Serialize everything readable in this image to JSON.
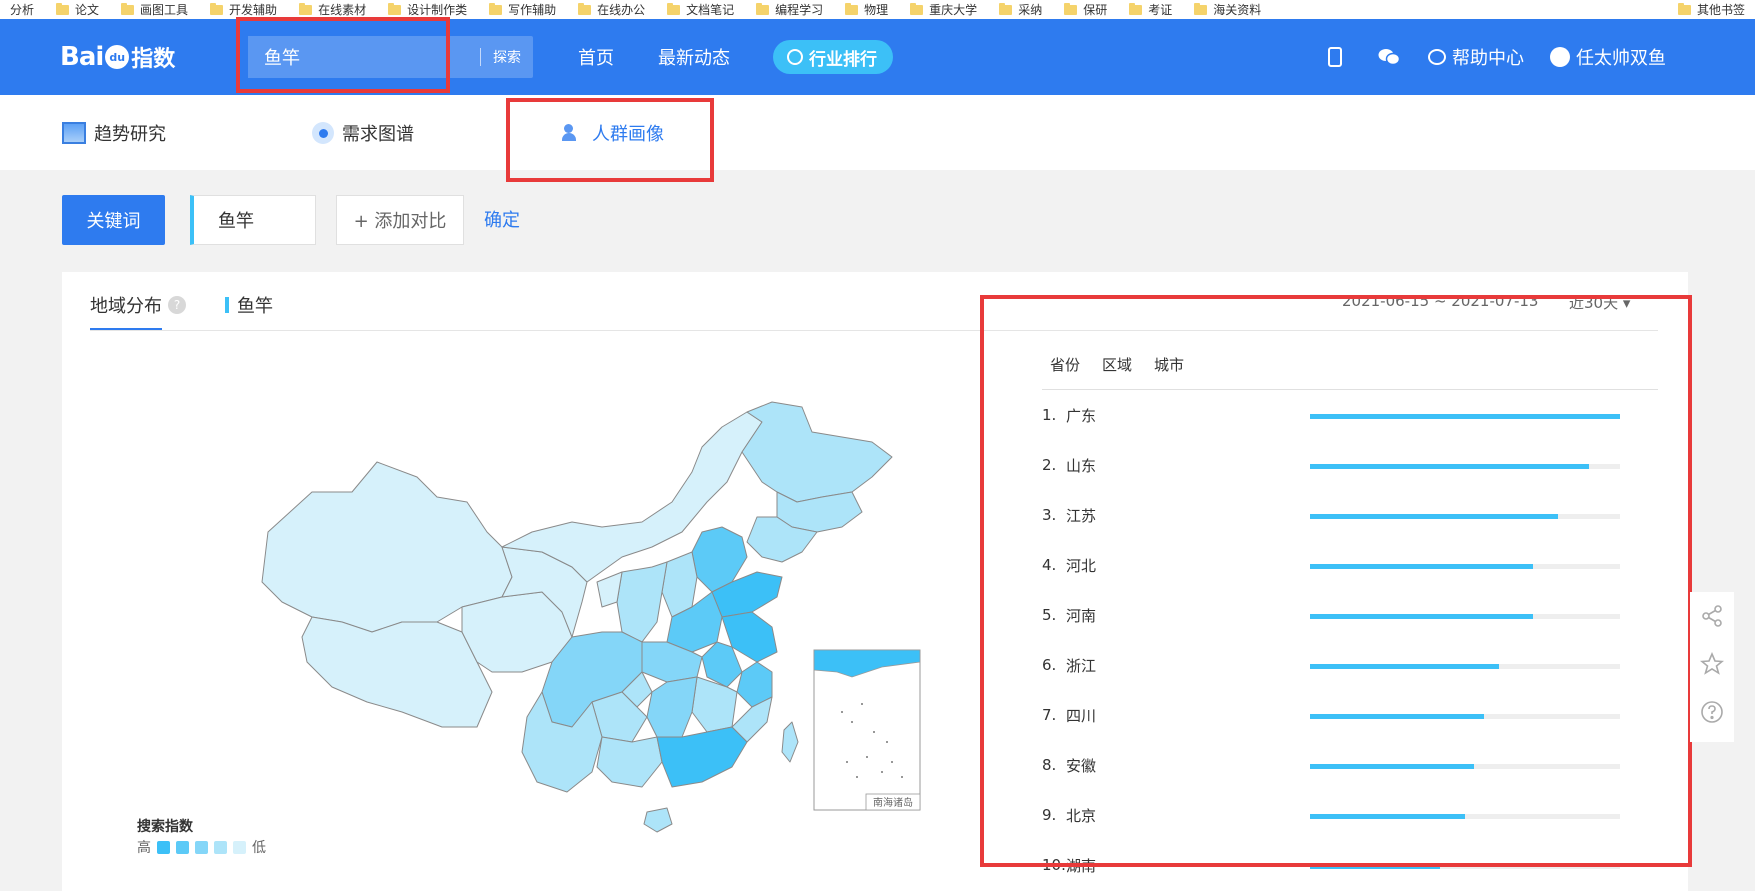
{
  "bookmarks": [
    "分析",
    "论文",
    "画图工具",
    "开发辅助",
    "在线素材",
    "设计制作类",
    "写作辅助",
    "在线办公",
    "文档笔记",
    "编程学习",
    "物理",
    "重庆大学",
    "采纳",
    "保研",
    "考证",
    "海关资料"
  ],
  "bookmarks_right": "其他书签",
  "header": {
    "logo_text": "Bai",
    "logo_paw": "du",
    "logo_suffix": "指数",
    "search_value": "鱼竿",
    "search_button": "探索",
    "nav_home": "首页",
    "nav_news": "最新动态",
    "nav_rank": "行业排行",
    "help": "帮助中心",
    "user": "任太帅双鱼"
  },
  "subtabs": {
    "trend": "趋势研究",
    "demand": "需求图谱",
    "crowd": "人群画像"
  },
  "keyword_row": {
    "label": "关键词",
    "keyword": "鱼竿",
    "add_compare": "+ 添加对比",
    "confirm": "确定"
  },
  "panel": {
    "tab_region": "地域分布",
    "tab_keyword": "鱼竿",
    "date_range": "2021-06-15 ~ 2021-07-13",
    "period": "近30天 ▾"
  },
  "map_legend": {
    "title": "搜索指数",
    "high": "高",
    "low": "低",
    "colors": [
      "#3cc0f7",
      "#5ccaf7",
      "#84d6f8",
      "#ade4f9",
      "#d6f1fb"
    ],
    "inset_label": "南海诸岛"
  },
  "ranking": {
    "tabs": [
      "省份",
      "区域",
      "城市"
    ],
    "items": [
      {
        "rank": "1.",
        "name": "广东",
        "level": 1.0
      },
      {
        "rank": "2.",
        "name": "山东",
        "level": 0.9
      },
      {
        "rank": "3.",
        "name": "江苏",
        "level": 0.8
      },
      {
        "rank": "4.",
        "name": "河北",
        "level": 0.72
      },
      {
        "rank": "5.",
        "name": "河南",
        "level": 0.72
      },
      {
        "rank": "6.",
        "name": "浙江",
        "level": 0.61
      },
      {
        "rank": "7.",
        "name": "四川",
        "level": 0.56
      },
      {
        "rank": "8.",
        "name": "安徽",
        "level": 0.53
      },
      {
        "rank": "9.",
        "name": "北京",
        "level": 0.5
      },
      {
        "rank": "10.",
        "name": "湖南",
        "level": 0.42
      }
    ]
  }
}
